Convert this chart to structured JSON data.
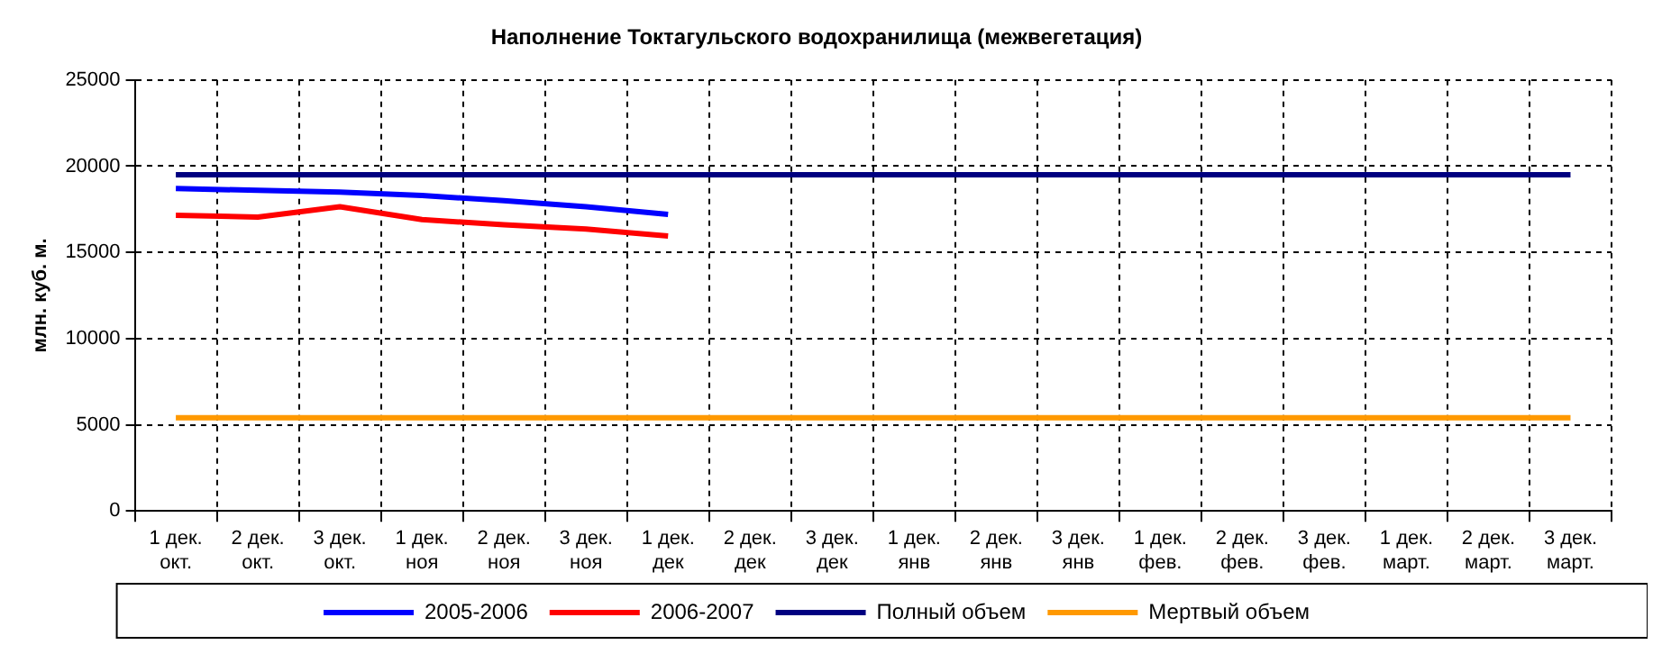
{
  "chart_data": {
    "type": "line",
    "title": "Наполнение Токтагульского водохранилища (межвегетация)",
    "ylabel": "млн. куб. м.",
    "categories": [
      "1 дек.\nокт.",
      "2 дек.\nокт.",
      "3 дек.\nокт.",
      "1 дек.\nноя",
      "2 дек.\nноя",
      "3 дек.\nноя",
      "1 дек.\nдек",
      "2 дек.\nдек",
      "3 дек.\nдек",
      "1 дек.\nянв",
      "2 дек.\nянв",
      "3 дек.\nянв",
      "1 дек.\nфев.",
      "2 дек.\nфев.",
      "3 дек.\nфев.",
      "1 дек.\nмарт.",
      "2 дек.\nмарт.",
      "3 дек.\nмарт."
    ],
    "series": [
      {
        "name": "2005-2006",
        "color": "#0000ff",
        "values": [
          18700,
          18600,
          18500,
          18300,
          18000,
          17650,
          17200,
          null,
          null,
          null,
          null,
          null,
          null,
          null,
          null,
          null,
          null,
          null
        ]
      },
      {
        "name": "2006-2007",
        "color": "#ff0000",
        "values": [
          17150,
          17050,
          17650,
          16900,
          16600,
          16350,
          15950,
          null,
          null,
          null,
          null,
          null,
          null,
          null,
          null,
          null,
          null,
          null
        ]
      },
      {
        "name": "Полный объем",
        "color": "#000080",
        "values": [
          19500,
          19500,
          19500,
          19500,
          19500,
          19500,
          19500,
          19500,
          19500,
          19500,
          19500,
          19500,
          19500,
          19500,
          19500,
          19500,
          19500,
          19500
        ]
      },
      {
        "name": "Мертвый объем",
        "color": "#ff9900",
        "values": [
          5400,
          5400,
          5400,
          5400,
          5400,
          5400,
          5400,
          5400,
          5400,
          5400,
          5400,
          5400,
          5400,
          5400,
          5400,
          5400,
          5400,
          5400
        ]
      }
    ],
    "ylim": [
      0,
      25000
    ],
    "yticks": [
      0,
      5000,
      10000,
      15000,
      20000,
      25000
    ],
    "grid": true,
    "legend": "bottom",
    "marker": "none",
    "line_style": "solid"
  }
}
